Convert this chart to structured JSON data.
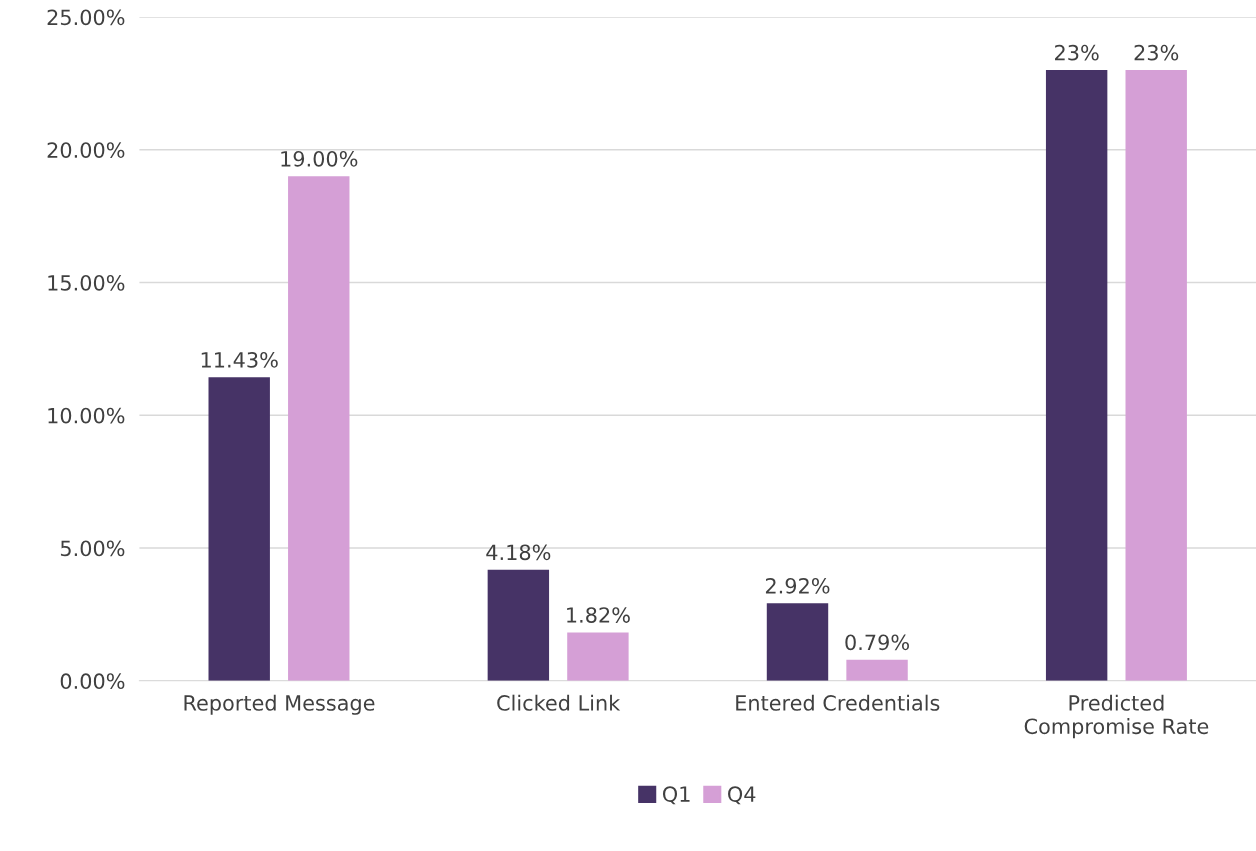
{
  "chart_data": {
    "type": "bar",
    "categories": [
      "Reported Message",
      "Clicked Link",
      "Entered Credentials",
      "Predicted\nCompromise Rate"
    ],
    "series": [
      {
        "name": "Q1",
        "color": "#463366",
        "values": [
          11.43,
          4.18,
          2.92,
          23
        ],
        "value_labels": [
          "11.43%",
          "4.18%",
          "2.92%",
          "23%"
        ]
      },
      {
        "name": "Q4",
        "color": "#d59fd6",
        "values": [
          19.0,
          1.82,
          0.79,
          23
        ],
        "value_labels": [
          "19.00%",
          "1.82%",
          "0.79%",
          "23%"
        ]
      }
    ],
    "ylim": [
      0,
      25
    ],
    "yticks": [
      {
        "value": 0,
        "label": "0.00%"
      },
      {
        "value": 5,
        "label": "5.00%"
      },
      {
        "value": 10,
        "label": "10.00%"
      },
      {
        "value": 15,
        "label": "15.00%"
      },
      {
        "value": 20,
        "label": "20.00%"
      },
      {
        "value": 25,
        "label": "25.00%"
      }
    ],
    "grid": "y",
    "legend": "bottom"
  }
}
